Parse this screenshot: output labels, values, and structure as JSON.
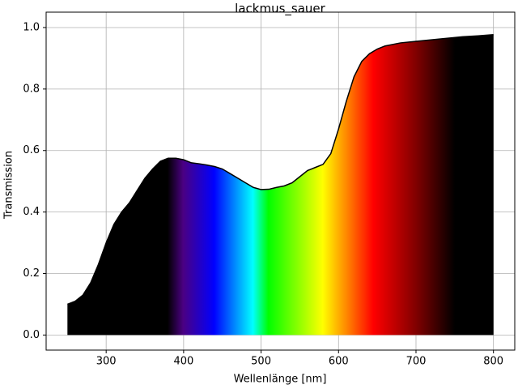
{
  "chart_data": {
    "type": "area",
    "title": "lackmus_sauer",
    "x_label": "Wellenlänge [nm]",
    "y_label": "Transmission",
    "x": [
      250,
      260,
      270,
      280,
      290,
      300,
      310,
      320,
      330,
      340,
      350,
      360,
      370,
      380,
      390,
      400,
      410,
      420,
      430,
      440,
      450,
      460,
      470,
      480,
      490,
      500,
      510,
      520,
      530,
      540,
      550,
      560,
      570,
      580,
      590,
      600,
      610,
      620,
      630,
      640,
      650,
      660,
      680,
      700,
      720,
      740,
      760,
      780,
      800
    ],
    "series": [
      {
        "name": "lackmus_sauer",
        "color": "#000000",
        "values": [
          0.1,
          0.11,
          0.13,
          0.17,
          0.23,
          0.3,
          0.36,
          0.4,
          0.43,
          0.47,
          0.51,
          0.54,
          0.565,
          0.575,
          0.575,
          0.57,
          0.56,
          0.557,
          0.553,
          0.548,
          0.54,
          0.525,
          0.51,
          0.495,
          0.48,
          0.473,
          0.474,
          0.48,
          0.485,
          0.495,
          0.515,
          0.535,
          0.545,
          0.555,
          0.59,
          0.67,
          0.76,
          0.84,
          0.89,
          0.915,
          0.93,
          0.94,
          0.95,
          0.955,
          0.96,
          0.965,
          0.97,
          0.973,
          0.977
        ]
      }
    ],
    "xlim": [
      222.5,
      827.5
    ],
    "ylim": [
      -0.049,
      1.05
    ],
    "xticks": [
      300,
      400,
      500,
      600,
      700,
      800
    ],
    "yticks": [
      {
        "value": 0,
        "label": "0.0"
      },
      0.2,
      0.4,
      0.6,
      0.8,
      {
        "value": 1,
        "label": "1.0"
      }
    ],
    "grid": true
  }
}
